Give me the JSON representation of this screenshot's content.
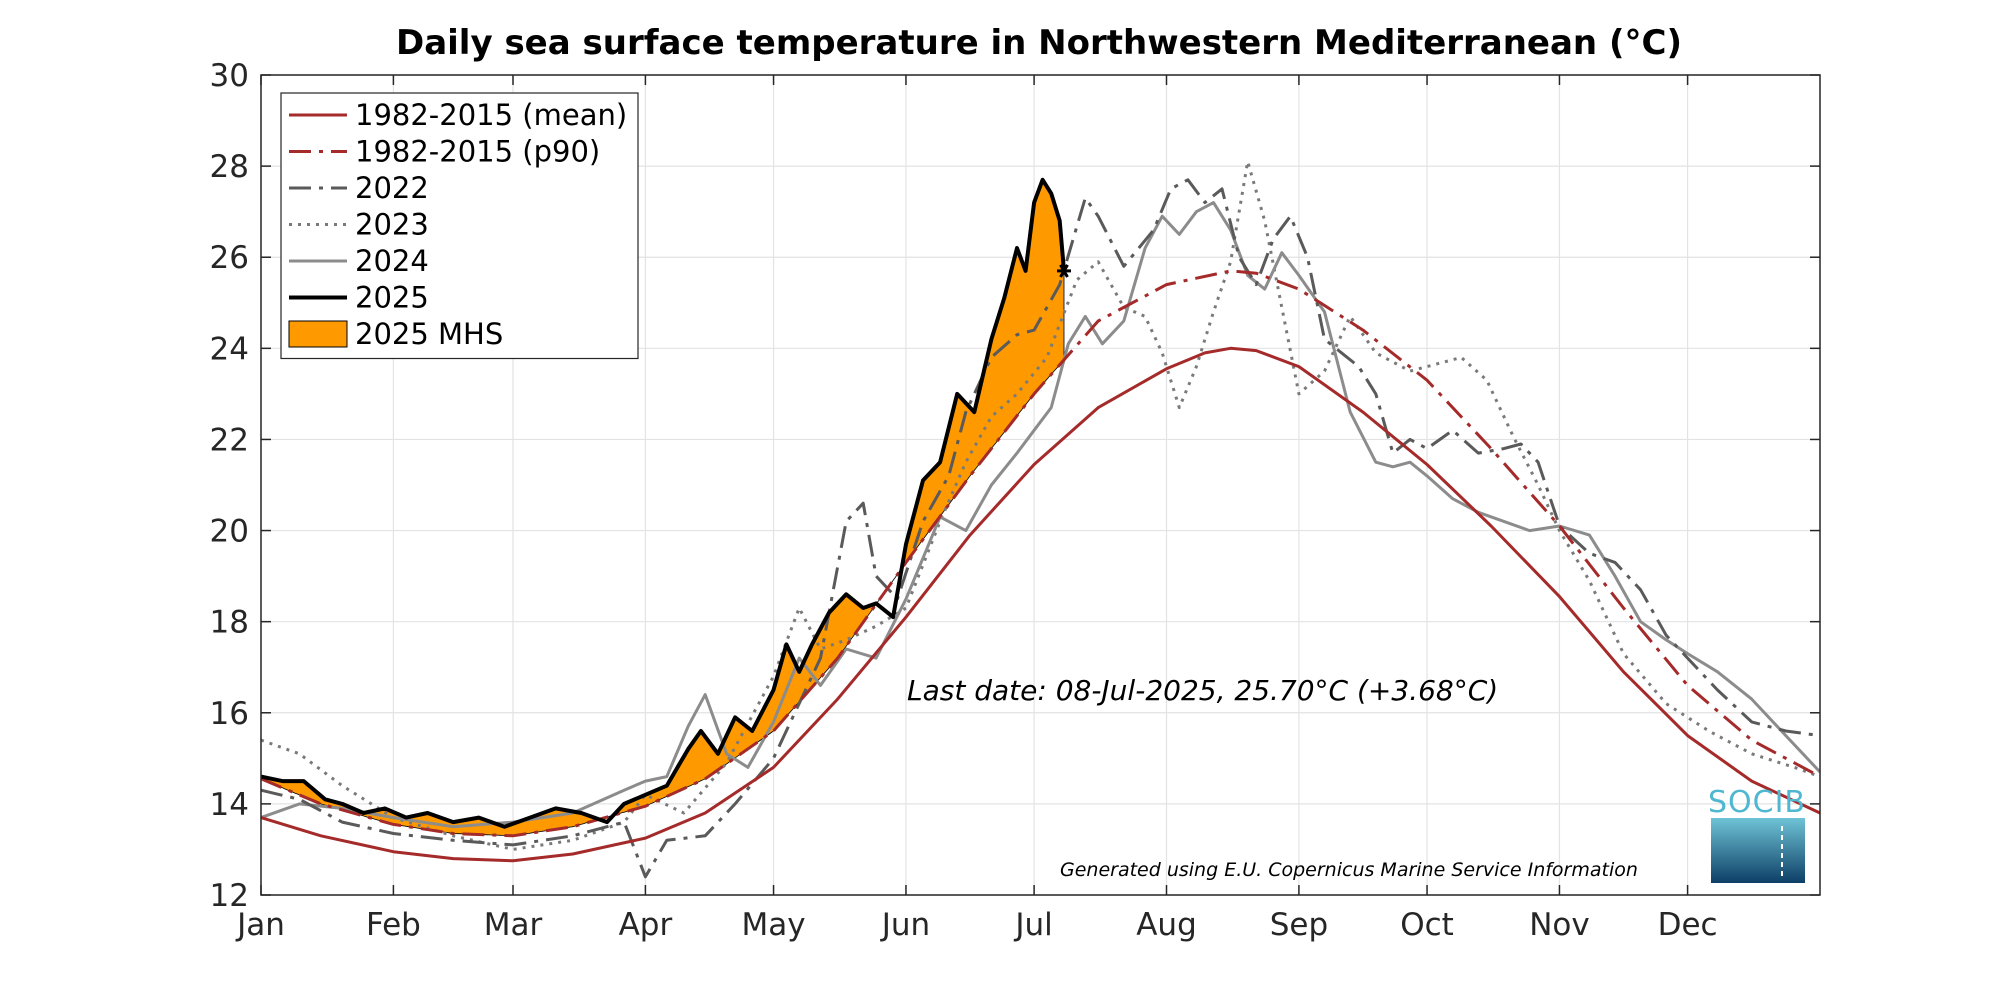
{
  "chart_data": {
    "type": "line",
    "title": "Daily sea surface temperature in Northwestern Mediterranean (°C)",
    "xlabel": "",
    "ylabel": "",
    "ylim": [
      12,
      30
    ],
    "xlim": [
      1,
      366
    ],
    "yticks": [
      12,
      14,
      16,
      18,
      20,
      22,
      24,
      26,
      28,
      30
    ],
    "xticks": [
      {
        "label": "Jan",
        "day": 1
      },
      {
        "label": "Feb",
        "day": 32
      },
      {
        "label": "Mar",
        "day": 60
      },
      {
        "label": "Apr",
        "day": 91
      },
      {
        "label": "May",
        "day": 121
      },
      {
        "label": "Jun",
        "day": 152
      },
      {
        "label": "Jul",
        "day": 182
      },
      {
        "label": "Aug",
        "day": 213
      },
      {
        "label": "Sep",
        "day": 244
      },
      {
        "label": "Oct",
        "day": 274
      },
      {
        "label": "Nov",
        "day": 305
      },
      {
        "label": "Dec",
        "day": 335
      }
    ],
    "grid": true,
    "legend_position": "top-left",
    "series": [
      {
        "name": "1982-2015 (mean)",
        "color": "#a52a2a",
        "style": "solid",
        "x": [
          1,
          15,
          32,
          46,
          60,
          74,
          91,
          105,
          121,
          136,
          152,
          167,
          182,
          197,
          213,
          222,
          228,
          234,
          244,
          259,
          274,
          289,
          305,
          320,
          335,
          350,
          366
        ],
        "y": [
          13.7,
          13.3,
          12.95,
          12.8,
          12.75,
          12.9,
          13.25,
          13.8,
          14.8,
          16.3,
          18.1,
          19.9,
          21.45,
          22.7,
          23.55,
          23.9,
          24.0,
          23.95,
          23.6,
          22.6,
          21.45,
          20.1,
          18.55,
          16.9,
          15.5,
          14.5,
          13.8
        ]
      },
      {
        "name": "1982-2015 (p90)",
        "color": "#a52a2a",
        "style": "dashdot",
        "x": [
          1,
          15,
          32,
          46,
          60,
          74,
          91,
          105,
          121,
          136,
          152,
          167,
          182,
          197,
          213,
          228,
          234,
          244,
          259,
          274,
          289,
          305,
          320,
          335,
          350,
          366
        ],
        "y": [
          14.55,
          14.0,
          13.55,
          13.35,
          13.3,
          13.5,
          13.95,
          14.55,
          15.6,
          17.2,
          19.3,
          21.2,
          23.0,
          24.6,
          25.4,
          25.7,
          25.65,
          25.3,
          24.4,
          23.3,
          21.8,
          20.1,
          18.3,
          16.6,
          15.4,
          14.6
        ]
      },
      {
        "name": "2022",
        "color": "#5a5a5a",
        "style": "dashdot",
        "x": [
          1,
          10,
          20,
          32,
          46,
          60,
          74,
          86,
          91,
          96,
          105,
          112,
          121,
          132,
          138,
          142,
          145,
          150,
          156,
          162,
          166,
          172,
          178,
          182,
          188,
          194,
          197,
          203,
          210,
          214,
          218,
          222,
          226,
          230,
          234,
          238,
          242,
          246,
          250,
          254,
          258,
          262,
          266,
          270,
          274,
          280,
          286,
          292,
          296,
          300,
          305,
          312,
          318,
          324,
          330,
          335,
          342,
          350,
          358,
          366
        ],
        "y": [
          14.3,
          14.1,
          13.6,
          13.35,
          13.2,
          13.1,
          13.3,
          13.6,
          12.4,
          13.2,
          13.3,
          14.0,
          15.0,
          17.2,
          20.2,
          20.6,
          19.0,
          18.5,
          20.2,
          21.2,
          22.6,
          23.8,
          24.3,
          24.4,
          25.4,
          27.3,
          26.9,
          25.8,
          26.6,
          27.5,
          27.7,
          27.2,
          27.5,
          26.0,
          25.4,
          26.4,
          26.9,
          26.0,
          24.2,
          23.9,
          23.6,
          23.0,
          21.7,
          22.0,
          21.8,
          22.2,
          21.7,
          21.8,
          21.9,
          21.5,
          20.1,
          19.5,
          19.3,
          18.7,
          17.7,
          17.2,
          16.5,
          15.8,
          15.6,
          15.5
        ]
      },
      {
        "name": "2023",
        "color": "#7a7a7a",
        "style": "dotted",
        "x": [
          1,
          10,
          20,
          32,
          46,
          60,
          74,
          86,
          91,
          100,
          110,
          121,
          127,
          132,
          138,
          145,
          152,
          160,
          166,
          172,
          178,
          185,
          192,
          197,
          203,
          208,
          212,
          216,
          220,
          224,
          228,
          232,
          236,
          240,
          244,
          250,
          256,
          262,
          270,
          274,
          282,
          288,
          294,
          300,
          305,
          312,
          320,
          330,
          340,
          350,
          360,
          366
        ],
        "y": [
          15.4,
          15.1,
          14.4,
          13.7,
          13.3,
          13.0,
          13.2,
          13.6,
          14.2,
          13.8,
          14.9,
          16.8,
          18.3,
          17.4,
          17.6,
          17.9,
          18.3,
          20.2,
          21.5,
          22.5,
          23.0,
          23.8,
          25.5,
          25.9,
          24.9,
          24.7,
          23.9,
          22.7,
          23.6,
          24.8,
          25.9,
          28.1,
          26.8,
          24.9,
          23.0,
          23.5,
          24.7,
          23.9,
          23.5,
          23.6,
          23.8,
          23.3,
          22.1,
          21.0,
          20.0,
          18.9,
          17.3,
          16.2,
          15.6,
          15.1,
          14.8,
          14.6
        ]
      },
      {
        "name": "2024",
        "color": "#8c8c8c",
        "style": "solid",
        "x": [
          1,
          10,
          20,
          32,
          46,
          60,
          74,
          86,
          91,
          96,
          101,
          105,
          110,
          115,
          121,
          127,
          132,
          138,
          145,
          152,
          160,
          166,
          172,
          178,
          182,
          186,
          190,
          194,
          198,
          203,
          208,
          212,
          216,
          220,
          224,
          228,
          232,
          236,
          240,
          244,
          250,
          256,
          262,
          266,
          270,
          274,
          280,
          286,
          292,
          298,
          305,
          312,
          318,
          324,
          330,
          335,
          342,
          350,
          358,
          366
        ],
        "y": [
          13.7,
          14.0,
          13.9,
          13.7,
          13.5,
          13.6,
          13.8,
          14.3,
          14.5,
          14.6,
          15.7,
          16.4,
          15.1,
          14.8,
          15.8,
          17.2,
          16.6,
          17.4,
          17.2,
          18.5,
          20.3,
          20.0,
          21.0,
          21.7,
          22.2,
          22.7,
          24.1,
          24.7,
          24.1,
          24.6,
          26.2,
          26.9,
          26.5,
          27.0,
          27.2,
          26.6,
          25.6,
          25.3,
          26.1,
          25.6,
          24.8,
          22.6,
          21.5,
          21.4,
          21.5,
          21.2,
          20.7,
          20.4,
          20.2,
          20.0,
          20.1,
          19.9,
          19.0,
          18.0,
          17.6,
          17.3,
          16.9,
          16.3,
          15.5,
          14.7
        ]
      },
      {
        "name": "2025",
        "color": "#000000",
        "style": "solid",
        "x": [
          1,
          6,
          11,
          16,
          20,
          25,
          30,
          35,
          40,
          46,
          52,
          58,
          64,
          70,
          76,
          82,
          86,
          91,
          96,
          101,
          104,
          108,
          112,
          116,
          121,
          124,
          127,
          130,
          134,
          138,
          142,
          145,
          149,
          152,
          156,
          160,
          164,
          168,
          172,
          175,
          178,
          180,
          182,
          184,
          186,
          188,
          189
        ],
        "y": [
          14.6,
          14.5,
          14.5,
          14.1,
          14.0,
          13.8,
          13.9,
          13.7,
          13.8,
          13.6,
          13.7,
          13.5,
          13.7,
          13.9,
          13.8,
          13.6,
          14.0,
          14.2,
          14.4,
          15.2,
          15.6,
          15.1,
          15.9,
          15.6,
          16.5,
          17.5,
          16.9,
          17.5,
          18.2,
          18.6,
          18.3,
          18.4,
          18.1,
          19.7,
          21.1,
          21.5,
          23.0,
          22.6,
          24.2,
          25.1,
          26.2,
          25.7,
          27.2,
          27.7,
          27.4,
          26.8,
          25.7
        ]
      }
    ],
    "fill_series": {
      "name": "2025 MHS",
      "color": "#ff9900",
      "between": [
        "2025",
        "1982-2015 (p90)"
      ]
    },
    "last_point": {
      "x": 189,
      "y": 25.7
    },
    "annotation": "Last date: 08-Jul-2025, 25.70°C (+3.68°C)",
    "credit": "Generated using E.U. Copernicus Marine Service Information",
    "logo_text": "SOCIB"
  }
}
